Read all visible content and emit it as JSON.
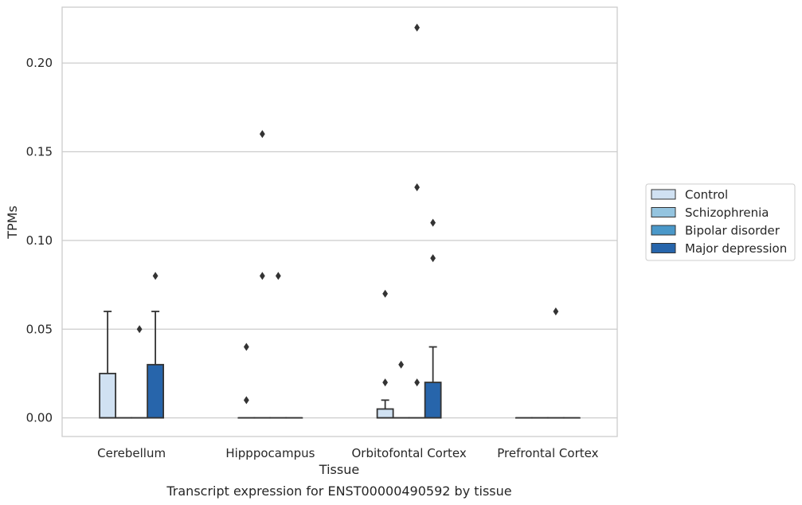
{
  "chart_data": {
    "type": "box",
    "xlabel": "Tissue",
    "ylabel": "TPMs",
    "caption": "Transcript expression for ENST00000490592 by tissue",
    "categories": [
      "Cerebellum",
      "Hipppocampus",
      "Orbitofontal Cortex",
      "Prefrontal Cortex"
    ],
    "ylim": [
      -0.0105,
      0.2315
    ],
    "yticks": [
      0.0,
      0.05,
      0.1,
      0.15,
      0.2
    ],
    "ytick_labels": [
      "0.00",
      "0.05",
      "0.10",
      "0.15",
      "0.20"
    ],
    "grid": true,
    "legend_position": "right",
    "series": [
      {
        "name": "Control",
        "color": "#d0e1f2",
        "boxes": [
          {
            "category": "Cerebellum",
            "q1": 0.0,
            "median": 0.0,
            "q3": 0.025,
            "whisker_low": 0.0,
            "whisker_high": 0.06,
            "outliers": []
          },
          {
            "category": "Hipppocampus",
            "q1": 0.0,
            "median": 0.0,
            "q3": 0.0,
            "whisker_low": 0.0,
            "whisker_high": 0.0,
            "outliers": [
              0.01,
              0.04
            ]
          },
          {
            "category": "Orbitofontal Cortex",
            "q1": 0.0,
            "median": 0.0,
            "q3": 0.005,
            "whisker_low": 0.0,
            "whisker_high": 0.01,
            "outliers": [
              0.02,
              0.07
            ]
          },
          {
            "category": "Prefrontal Cortex",
            "q1": 0.0,
            "median": 0.0,
            "q3": 0.0,
            "whisker_low": 0.0,
            "whisker_high": 0.0,
            "outliers": []
          }
        ]
      },
      {
        "name": "Schizophrenia",
        "color": "#94c4df",
        "boxes": [
          {
            "category": "Cerebellum",
            "q1": 0.0,
            "median": 0.0,
            "q3": 0.0,
            "whisker_low": 0.0,
            "whisker_high": 0.0,
            "outliers": []
          },
          {
            "category": "Hipppocampus",
            "q1": 0.0,
            "median": 0.0,
            "q3": 0.0,
            "whisker_low": 0.0,
            "whisker_high": 0.0,
            "outliers": [
              0.08,
              0.16
            ]
          },
          {
            "category": "Orbitofontal Cortex",
            "q1": 0.0,
            "median": 0.0,
            "q3": 0.0,
            "whisker_low": 0.0,
            "whisker_high": 0.0,
            "outliers": [
              0.03
            ]
          },
          {
            "category": "Prefrontal Cortex",
            "q1": 0.0,
            "median": 0.0,
            "q3": 0.0,
            "whisker_low": 0.0,
            "whisker_high": 0.0,
            "outliers": []
          }
        ]
      },
      {
        "name": "Bipolar disorder",
        "color": "#4a98c9",
        "boxes": [
          {
            "category": "Cerebellum",
            "q1": 0.0,
            "median": 0.0,
            "q3": 0.0,
            "whisker_low": 0.0,
            "whisker_high": 0.0,
            "outliers": [
              0.05
            ]
          },
          {
            "category": "Hipppocampus",
            "q1": 0.0,
            "median": 0.0,
            "q3": 0.0,
            "whisker_low": 0.0,
            "whisker_high": 0.0,
            "outliers": [
              0.08
            ]
          },
          {
            "category": "Orbitofontal Cortex",
            "q1": 0.0,
            "median": 0.0,
            "q3": 0.0,
            "whisker_low": 0.0,
            "whisker_high": 0.0,
            "outliers": [
              0.02,
              0.13,
              0.22
            ]
          },
          {
            "category": "Prefrontal Cortex",
            "q1": 0.0,
            "median": 0.0,
            "q3": 0.0,
            "whisker_low": 0.0,
            "whisker_high": 0.0,
            "outliers": [
              0.06
            ]
          }
        ]
      },
      {
        "name": "Major depression",
        "color": "#2765ab",
        "boxes": [
          {
            "category": "Cerebellum",
            "q1": 0.0,
            "median": 0.0,
            "q3": 0.03,
            "whisker_low": 0.0,
            "whisker_high": 0.06,
            "outliers": [
              0.08
            ]
          },
          {
            "category": "Hipppocampus",
            "q1": 0.0,
            "median": 0.0,
            "q3": 0.0,
            "whisker_low": 0.0,
            "whisker_high": 0.0,
            "outliers": []
          },
          {
            "category": "Orbitofontal Cortex",
            "q1": 0.0,
            "median": 0.0,
            "q3": 0.02,
            "whisker_low": 0.0,
            "whisker_high": 0.04,
            "outliers": [
              0.09,
              0.11
            ]
          },
          {
            "category": "Prefrontal Cortex",
            "q1": 0.0,
            "median": 0.0,
            "q3": 0.0,
            "whisker_low": 0.0,
            "whisker_high": 0.0,
            "outliers": []
          }
        ]
      }
    ]
  },
  "colors": {
    "grid": "#cccccc",
    "frame": "#cccccc",
    "line": "#333333",
    "marker": "#333333"
  }
}
